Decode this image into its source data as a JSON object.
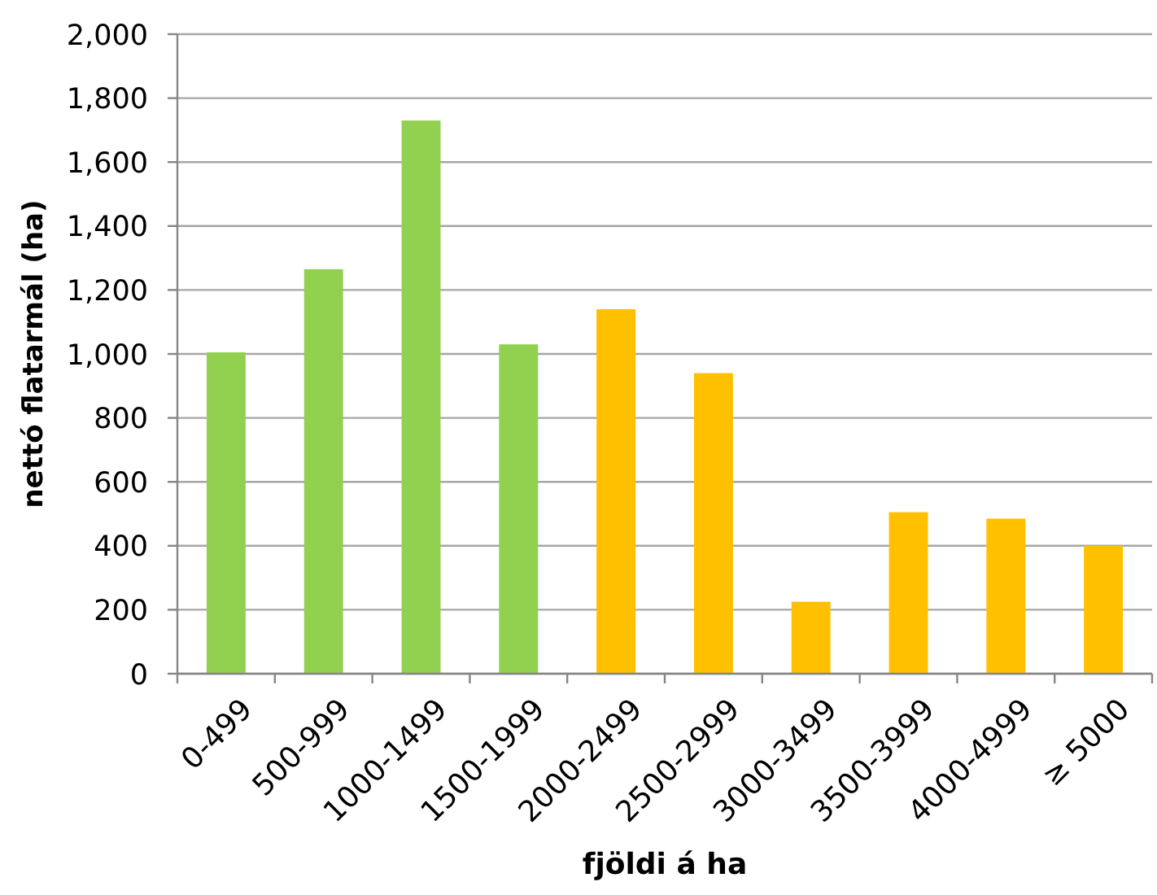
{
  "chart_data": {
    "type": "bar",
    "xlabel": "fjöldi á ha",
    "ylabel": "nettó flatarmál (ha)",
    "categories": [
      "0-499",
      "500-999",
      "1000-1499",
      "1500-1999",
      "2000-2499",
      "2500-2999",
      "3000-3499",
      "3500-3999",
      "4000-4999",
      "≥ 5000"
    ],
    "values": [
      1005,
      1265,
      1730,
      1030,
      1140,
      940,
      225,
      505,
      485,
      400
    ],
    "colors": [
      "#92d050",
      "#92d050",
      "#92d050",
      "#92d050",
      "#ffc000",
      "#ffc000",
      "#ffc000",
      "#ffc000",
      "#ffc000",
      "#ffc000"
    ],
    "ylim": [
      0,
      2000
    ],
    "yticks": [
      0,
      200,
      400,
      600,
      800,
      {
        "value": 1000,
        "label": "1,000"
      },
      {
        "value": 1200,
        "label": "1,200"
      },
      {
        "value": 1400,
        "label": "1,400"
      },
      {
        "value": 1600,
        "label": "1,600"
      },
      {
        "value": 1800,
        "label": "1,800"
      },
      {
        "value": 2000,
        "label": "2,000"
      }
    ],
    "grid": "y"
  }
}
